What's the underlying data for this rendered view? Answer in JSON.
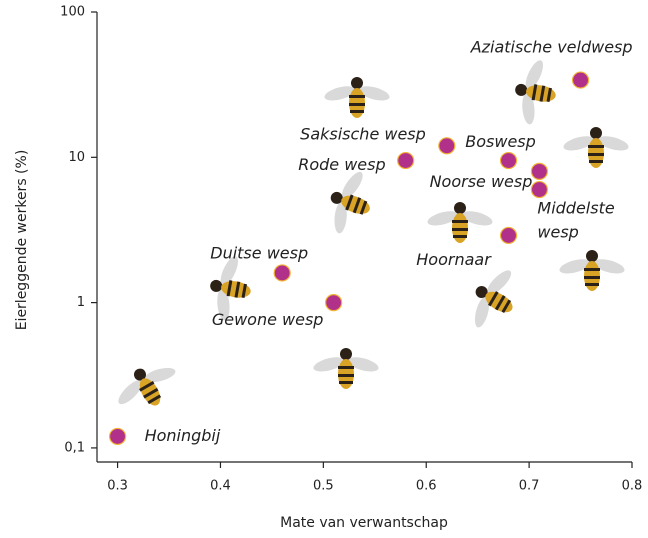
{
  "chart_data": {
    "type": "scatter",
    "x_label": "Mate van verwantschap",
    "y_label": "Eierleggende werkers (%)",
    "log_y": true,
    "color": "#b0308a",
    "edge_color": "#f2b233",
    "xlim": [
      0.28,
      0.8
    ],
    "ylim": [
      0.08,
      100
    ],
    "xticks": [
      0.3,
      0.4,
      0.5,
      0.6,
      0.7,
      0.8
    ],
    "yticks": [
      {
        "value": 0.1,
        "label": "0,1"
      },
      1,
      10,
      100
    ],
    "labels": [
      "Honingbij",
      "Duitse wesp",
      "Gewone wesp",
      "Rode wesp",
      "Saksische wesp",
      "Boswesp",
      "Noorse wesp",
      "Middelste wesp",
      "Hoornaar",
      "Aziatische veldwesp"
    ],
    "x": [
      0.3,
      0.46,
      0.51,
      0.58,
      0.62,
      0.68,
      0.71,
      0.71,
      0.68,
      0.75
    ],
    "values": [
      0.12,
      1.6,
      1.0,
      9.5,
      12,
      9.5,
      8,
      6,
      2.9,
      34
    ]
  }
}
